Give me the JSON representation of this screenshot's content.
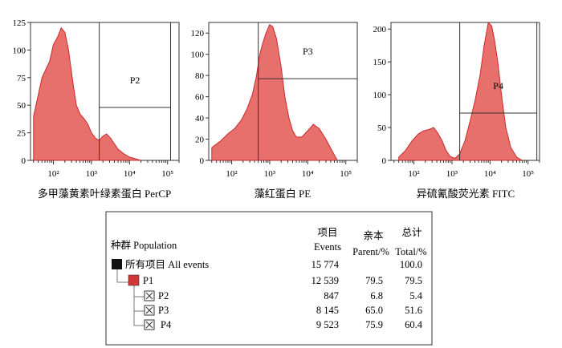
{
  "colors": {
    "fill": "#e7706d",
    "edge": "#c92a2a",
    "frame": "#333333",
    "swatch_all": "#111111",
    "swatch_p1": "#d33636"
  },
  "chart_data": [
    {
      "type": "area",
      "xscale": "log",
      "xlim": [
        25,
        200000
      ],
      "ylim": [
        0,
        125
      ],
      "yticks": [
        0,
        25,
        50,
        75,
        100,
        125
      ],
      "xticks": [
        "10²",
        "10³",
        "10⁴",
        "10⁵"
      ],
      "xlabel": "多甲藻黄素叶绿素蛋白 PerCP",
      "gates": [
        {
          "label": "P2",
          "x": [
            1600,
            120000
          ],
          "y": [
            0,
            48
          ]
        }
      ],
      "x": [
        30,
        50,
        80,
        100,
        130,
        160,
        200,
        250,
        320,
        400,
        500,
        630,
        800,
        1000,
        1300,
        1600,
        2000,
        2500,
        3200,
        4000,
        5000,
        7000,
        10000,
        20000
      ],
      "y": [
        40,
        75,
        90,
        105,
        112,
        120,
        116,
        100,
        72,
        50,
        42,
        38,
        33,
        25,
        20,
        18,
        22,
        24,
        20,
        15,
        10,
        6,
        3,
        0
      ]
    },
    {
      "type": "area",
      "xscale": "log",
      "xlim": [
        25,
        200000
      ],
      "ylim": [
        0,
        130
      ],
      "yticks": [
        0,
        20,
        40,
        60,
        80,
        100,
        120
      ],
      "xticks": [
        "10²",
        "10³",
        "10⁴",
        "10⁵"
      ],
      "xlabel": "藻红蛋白 PE",
      "gates": [
        {
          "label": "P3",
          "x": [
            500,
            200000
          ],
          "y": [
            0,
            77
          ]
        }
      ],
      "x": [
        30,
        50,
        80,
        120,
        180,
        250,
        350,
        450,
        550,
        650,
        800,
        1000,
        1200,
        1500,
        2000,
        2500,
        3200,
        4000,
        5000,
        7000,
        10000,
        14000,
        20000,
        30000,
        45000,
        60000
      ],
      "y": [
        12,
        18,
        25,
        30,
        38,
        48,
        62,
        80,
        100,
        110,
        120,
        128,
        126,
        115,
        88,
        60,
        40,
        28,
        22,
        22,
        28,
        34,
        30,
        20,
        8,
        0
      ]
    },
    {
      "type": "area",
      "xscale": "log",
      "xlim": [
        25,
        200000
      ],
      "ylim": [
        0,
        210
      ],
      "yticks": [
        0,
        50,
        100,
        150,
        200
      ],
      "xticks": [
        "10²",
        "10³",
        "10⁴",
        "10⁵"
      ],
      "xlabel": "异硫氰酸荧光素 FITC",
      "gates": [
        {
          "label": "P4",
          "x": [
            1600,
            170000
          ],
          "y": [
            0,
            72
          ]
        }
      ],
      "x": [
        40,
        60,
        90,
        130,
        180,
        250,
        330,
        420,
        550,
        700,
        900,
        1200,
        1600,
        2200,
        3000,
        4000,
        5500,
        7000,
        9000,
        11000,
        13000,
        16000,
        20000,
        26000,
        35000,
        50000,
        70000
      ],
      "y": [
        5,
        15,
        30,
        40,
        45,
        47,
        50,
        42,
        30,
        15,
        6,
        3,
        10,
        30,
        60,
        90,
        130,
        175,
        210,
        205,
        185,
        150,
        100,
        50,
        20,
        5,
        0
      ]
    }
  ],
  "table": {
    "col_headers": [
      {
        "top": "项目",
        "bottom": "Events"
      },
      {
        "top": "亲本",
        "bottom": "Parent/%"
      },
      {
        "top": "总计",
        "bottom": "Total/%"
      }
    ],
    "population_header": "种群  Population",
    "rows": [
      {
        "name": "所有项目  All events",
        "events": "15 774",
        "parent": "",
        "total": "100.0"
      },
      {
        "name": "P1",
        "events": "12 539",
        "parent": "79.5",
        "total": "79.5"
      },
      {
        "name": "P2",
        "events": "847",
        "parent": "6.8",
        "total": "5.4"
      },
      {
        "name": "P3",
        "events": "8 145",
        "parent": "65.0",
        "total": "51.6"
      },
      {
        "name": "P4",
        "events": "9 523",
        "parent": "75.9",
        "total": "60.4"
      }
    ]
  }
}
